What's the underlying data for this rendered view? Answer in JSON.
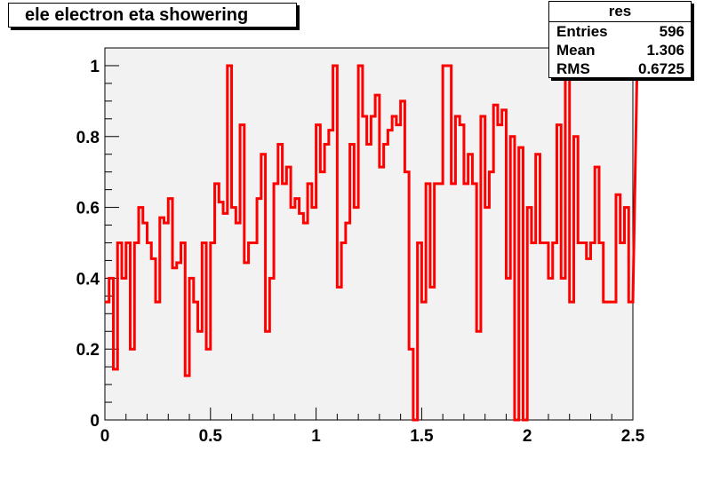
{
  "title": "ele electron eta showering",
  "stats": {
    "name": "res",
    "rows": [
      {
        "label": "Entries",
        "value": "596"
      },
      {
        "label": "Mean",
        "value": "1.306"
      },
      {
        "label": "RMS",
        "value": "0.6725"
      }
    ]
  },
  "colors": {
    "line": "#ff0000",
    "frame_fill": "#f2f2f2",
    "axis": "#000000"
  },
  "chart_data": {
    "type": "line",
    "step": true,
    "xlim": [
      0,
      2.5
    ],
    "ylim": [
      0,
      1.05
    ],
    "x_ticks": [
      "0",
      "0.5",
      "1",
      "1.5",
      "2",
      "2.5"
    ],
    "y_ticks": [
      "0",
      "0.2",
      "0.4",
      "0.6",
      "0.8",
      "1"
    ],
    "xlabel": "",
    "ylabel": "",
    "grid": false,
    "series": [
      {
        "bin_width": 0.02,
        "values": [
          0.333,
          0.4,
          0.143,
          0.5,
          0.4,
          0.5,
          0.2,
          0.5,
          0.6,
          0.556,
          0.5,
          0.455,
          0.333,
          0.571,
          0.556,
          0.625,
          0.429,
          0.444,
          0.5,
          0.125,
          0.4,
          0.333,
          0.25,
          0.5,
          0.2,
          0.5,
          0.667,
          0.615,
          0.583,
          1.0,
          0.6,
          0.556,
          0.833,
          0.444,
          0.5,
          0.5,
          0.625,
          0.75,
          0.25,
          0.4,
          0.667,
          0.778,
          0.667,
          0.714,
          0.6,
          0.625,
          0.583,
          0.556,
          0.667,
          0.6,
          0.833,
          0.7,
          0.778,
          0.818,
          1.0,
          0.375,
          0.5,
          0.556,
          0.778,
          0.6,
          1.0,
          0.857,
          0.778,
          0.857,
          0.917,
          0.714,
          0.778,
          0.818,
          0.857,
          0.833,
          0.9,
          0.7,
          0.2,
          0.0,
          0.5,
          0.333,
          0.667,
          0.375,
          0.667,
          0.667,
          1.0,
          1.0,
          0.667,
          0.857,
          0.833,
          0.667,
          0.75,
          0.667,
          0.25,
          0.857,
          0.6,
          0.7,
          0.889,
          0.833,
          0.875,
          0.4,
          0.8,
          0.0,
          0.769,
          0.0,
          0.6,
          0.5,
          0.75,
          0.5,
          0.5,
          0.4,
          0.5,
          0.833,
          0.4,
          1.0,
          0.333,
          0.8,
          0.5,
          0.5,
          0.455,
          0.5,
          0.714,
          0.5,
          0.333,
          0.333,
          0.333,
          0.636,
          0.5,
          0.6,
          0.333,
          0.333,
          1.0
        ]
      }
    ]
  }
}
